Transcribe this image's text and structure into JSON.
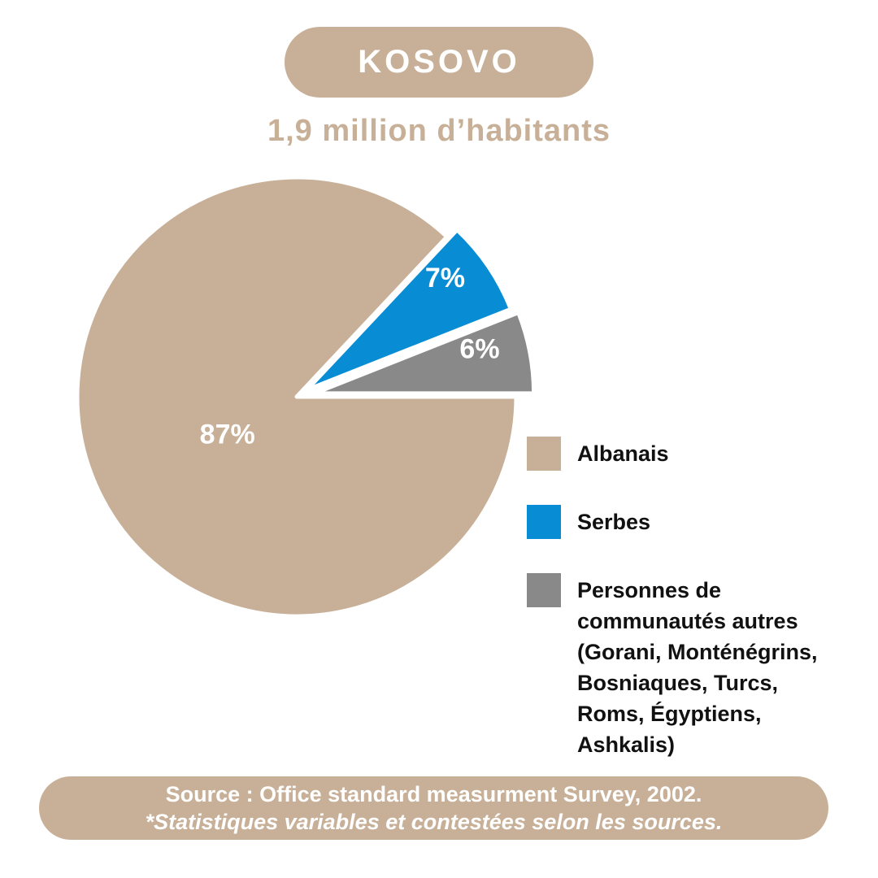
{
  "header": {
    "title": "KOSOVO",
    "subtitle": "1,9 million d’habitants"
  },
  "chart_data": {
    "type": "pie",
    "title": "KOSOVO",
    "subtitle": "1,9 million d’habitants",
    "unit": "percent",
    "legend_position": "right",
    "start_angle_deg": 0,
    "direction": "counterclockwise",
    "slices": [
      {
        "label": "Albanais",
        "label_lines": [
          "Albanais"
        ],
        "value": 87,
        "display": "87%",
        "color": "#C8B098",
        "exploded": false
      },
      {
        "label": "Serbes",
        "label_lines": [
          "Serbes"
        ],
        "value": 7,
        "display": "7%",
        "color": "#088CD4",
        "exploded": true
      },
      {
        "label": "Personnes de communautés autres (Gorani, Monténégrins, Bosniaques, Turcs, Roms, Égyptiens, Ashkalis)",
        "label_lines": [
          "Personnes de",
          "communautés autres",
          "(Gorani, Monténégrins,",
          "Bosniaques, Turcs,",
          "Roms, Égyptiens,",
          "Ashkalis)"
        ],
        "value": 6,
        "display": "6%",
        "color": "#898989",
        "exploded": true
      }
    ]
  },
  "footer": {
    "line1": "Source : Office standard measurment Survey, 2002.",
    "line2": "*Statistiques variables et contestées selon les sources."
  },
  "colors": {
    "accent_tan": "#C8B098",
    "accent_blue": "#088CD4",
    "accent_gray": "#898989",
    "slice_label_white": "#FFFFFF",
    "legend_text_dark": "#111111"
  }
}
